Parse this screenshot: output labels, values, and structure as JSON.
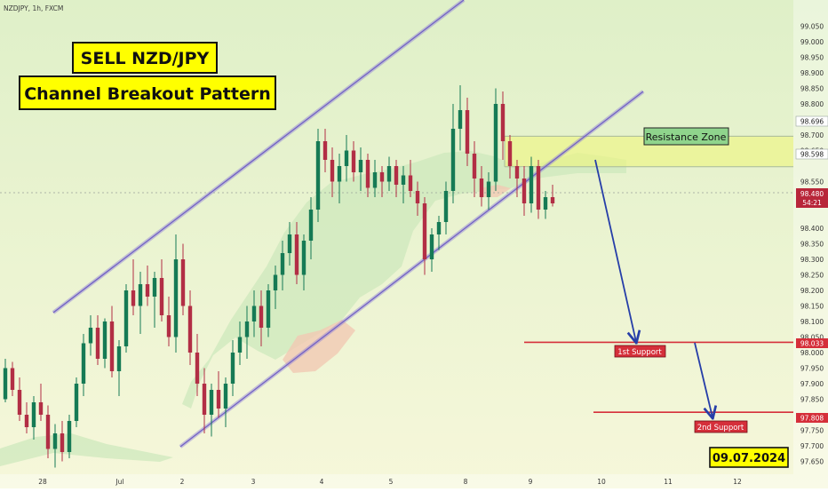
{
  "header": {
    "symbol_label": "NZDJPY, 1h, FXCM"
  },
  "title_box": {
    "line1": "SELL NZD/JPY",
    "line2": "Channel Breakout Pattern"
  },
  "date_badge": "09.07.2024",
  "colors": {
    "bg_top": "#dff0c8",
    "bg_bottom": "#f6f7da",
    "bull": "#167a55",
    "bear": "#b22e45",
    "channel": "#8e7fd6",
    "resistance_zone": "#eef57d",
    "support_line": "#d52f3a",
    "arrow": "#263ea8",
    "cloud_green": "#cde8bc",
    "cloud_red": "#f1c9b3"
  },
  "annotations": {
    "resistance_zone": {
      "label": "Resistance Zone",
      "top": 98.696,
      "bottom": 98.598
    },
    "supports": [
      {
        "label": "1st Support",
        "price": 98.033,
        "price_label": "98.033"
      },
      {
        "label": "2nd Support",
        "price": 97.808,
        "price_label": "97.808"
      }
    ]
  },
  "price_axis": {
    "ticks": [
      "99.050",
      "99.000",
      "98.950",
      "98.900",
      "98.850",
      "98.800",
      "98.750",
      "98.700",
      "98.650",
      "98.550",
      "98.500",
      "98.400",
      "98.350",
      "98.300",
      "98.250",
      "98.200",
      "98.150",
      "98.100",
      "98.050",
      "98.000",
      "97.950",
      "97.900",
      "97.850",
      "97.750",
      "97.700",
      "97.650"
    ],
    "level_labels": [
      "98.696",
      "98.598"
    ],
    "current_price": "98.480",
    "countdown": "54:21"
  },
  "time_axis": {
    "labels": [
      "28",
      "Jul",
      "2",
      "3",
      "4",
      "5",
      "8",
      "9",
      "10",
      "11",
      "12"
    ]
  },
  "chart_data": {
    "type": "candlestick",
    "symbol": "NZDJPY",
    "timeframe": "1h",
    "ylim": [
      97.63,
      99.06
    ],
    "current_price": 98.48,
    "channel": {
      "upper": [
        {
          "x": "Jun 28",
          "y": 98.1
        },
        {
          "x": "Jul 4 (late)",
          "y": 99.06
        }
      ],
      "lower": [
        {
          "x": "Jul 2",
          "y": 97.72
        },
        {
          "x": "Jul 9 (late)",
          "y": 98.76
        }
      ]
    },
    "projection": [
      {
        "from": 98.6,
        "to": 98.033
      },
      {
        "from": 98.033,
        "to": 97.808
      }
    ],
    "candles_ohlc": [
      [
        97.85,
        97.98,
        97.84,
        97.95
      ],
      [
        97.95,
        97.97,
        97.86,
        97.88
      ],
      [
        97.88,
        97.92,
        97.78,
        97.8
      ],
      [
        97.8,
        97.84,
        97.74,
        97.76
      ],
      [
        97.76,
        97.86,
        97.72,
        97.84
      ],
      [
        97.84,
        97.9,
        97.78,
        97.8
      ],
      [
        97.8,
        97.83,
        97.66,
        97.69
      ],
      [
        97.69,
        97.77,
        97.63,
        97.74
      ],
      [
        97.74,
        97.78,
        97.65,
        97.68
      ],
      [
        97.68,
        97.8,
        97.66,
        97.78
      ],
      [
        97.78,
        97.92,
        97.76,
        97.9
      ],
      [
        97.9,
        98.06,
        97.86,
        98.03
      ],
      [
        98.03,
        98.12,
        97.99,
        98.08
      ],
      [
        98.08,
        98.12,
        97.96,
        97.98
      ],
      [
        97.98,
        98.11,
        97.95,
        98.1
      ],
      [
        98.1,
        98.15,
        97.92,
        97.94
      ],
      [
        97.94,
        98.04,
        97.86,
        98.02
      ],
      [
        98.02,
        98.22,
        98.0,
        98.2
      ],
      [
        98.2,
        98.3,
        98.12,
        98.15
      ],
      [
        98.15,
        98.26,
        98.06,
        98.22
      ],
      [
        98.22,
        98.28,
        98.15,
        98.18
      ],
      [
        98.18,
        98.26,
        98.08,
        98.24
      ],
      [
        98.24,
        98.3,
        98.1,
        98.12
      ],
      [
        98.12,
        98.18,
        98.02,
        98.05
      ],
      [
        98.05,
        98.38,
        98.0,
        98.3
      ],
      [
        98.3,
        98.35,
        98.12,
        98.15
      ],
      [
        98.15,
        98.2,
        97.96,
        98.0
      ],
      [
        98.0,
        98.06,
        97.86,
        97.9
      ],
      [
        97.9,
        97.95,
        97.74,
        97.8
      ],
      [
        97.8,
        97.9,
        97.73,
        97.88
      ],
      [
        97.88,
        97.94,
        97.79,
        97.82
      ],
      [
        97.82,
        97.92,
        97.76,
        97.9
      ],
      [
        97.9,
        98.04,
        97.86,
        98.0
      ],
      [
        98.0,
        98.1,
        97.96,
        98.05
      ],
      [
        98.05,
        98.15,
        97.98,
        98.1
      ],
      [
        98.1,
        98.2,
        98.05,
        98.15
      ],
      [
        98.15,
        98.2,
        98.02,
        98.08
      ],
      [
        98.08,
        98.22,
        98.05,
        98.2
      ],
      [
        98.2,
        98.28,
        98.14,
        98.25
      ],
      [
        98.25,
        98.36,
        98.2,
        98.32
      ],
      [
        98.32,
        98.42,
        98.28,
        98.38
      ],
      [
        98.38,
        98.42,
        98.22,
        98.25
      ],
      [
        98.25,
        98.38,
        98.2,
        98.36
      ],
      [
        98.36,
        98.5,
        98.3,
        98.46
      ],
      [
        98.46,
        98.72,
        98.42,
        98.68
      ],
      [
        98.68,
        98.72,
        98.58,
        98.62
      ],
      [
        98.62,
        98.66,
        98.5,
        98.55
      ],
      [
        98.55,
        98.64,
        98.48,
        98.6
      ],
      [
        98.6,
        98.7,
        98.55,
        98.65
      ],
      [
        98.65,
        98.68,
        98.55,
        98.58
      ],
      [
        98.58,
        98.66,
        98.52,
        98.62
      ],
      [
        98.62,
        98.64,
        98.5,
        98.53
      ],
      [
        98.53,
        98.62,
        98.5,
        98.58
      ],
      [
        98.58,
        98.6,
        98.5,
        98.55
      ],
      [
        98.55,
        98.63,
        98.52,
        98.6
      ],
      [
        98.6,
        98.62,
        98.5,
        98.54
      ],
      [
        98.54,
        98.6,
        98.48,
        98.57
      ],
      [
        98.57,
        98.62,
        98.5,
        98.52
      ],
      [
        98.52,
        98.55,
        98.44,
        98.48
      ],
      [
        98.48,
        98.5,
        98.25,
        98.3
      ],
      [
        98.3,
        98.4,
        98.26,
        98.38
      ],
      [
        98.38,
        98.44,
        98.33,
        98.42
      ],
      [
        98.42,
        98.55,
        98.38,
        98.52
      ],
      [
        98.52,
        98.8,
        98.48,
        98.72
      ],
      [
        98.72,
        98.86,
        98.65,
        98.78
      ],
      [
        98.78,
        98.82,
        98.6,
        98.64
      ],
      [
        98.64,
        98.68,
        98.5,
        98.56
      ],
      [
        98.56,
        98.6,
        98.47,
        98.5
      ],
      [
        98.5,
        98.58,
        98.46,
        98.55
      ],
      [
        98.55,
        98.85,
        98.52,
        98.8
      ],
      [
        98.8,
        98.84,
        98.62,
        98.68
      ],
      [
        98.68,
        98.7,
        98.56,
        98.6
      ],
      [
        98.6,
        98.62,
        98.5,
        98.56
      ],
      [
        98.56,
        98.6,
        98.44,
        98.48
      ],
      [
        98.48,
        98.63,
        98.45,
        98.6
      ],
      [
        98.6,
        98.62,
        98.43,
        98.46
      ],
      [
        98.46,
        98.52,
        98.43,
        98.5
      ],
      [
        98.5,
        98.54,
        98.47,
        98.48
      ]
    ]
  }
}
